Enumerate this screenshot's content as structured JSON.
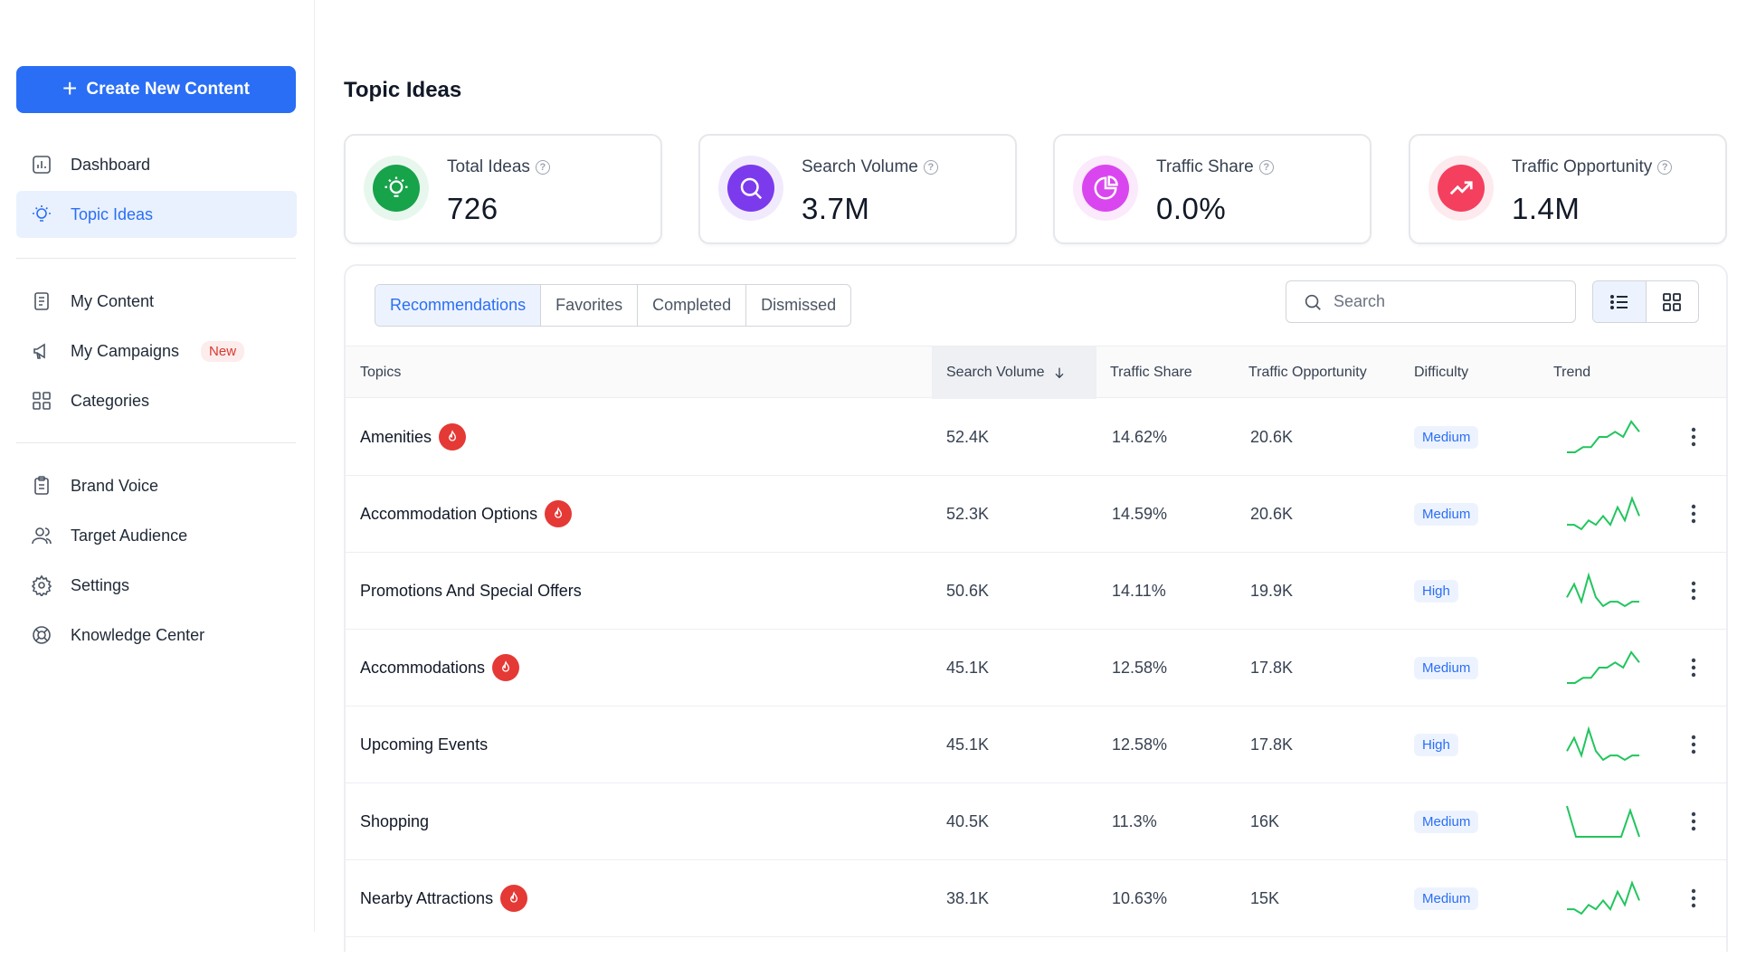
{
  "sidebar": {
    "create_label": "Create New Content",
    "group1": [
      {
        "label": "Dashboard",
        "icon": "chart-bar-icon"
      },
      {
        "label": "Topic Ideas",
        "icon": "lightbulb-icon",
        "active": true
      }
    ],
    "group2": [
      {
        "label": "My Content",
        "icon": "document-icon"
      },
      {
        "label": "My Campaigns",
        "icon": "megaphone-icon",
        "badge": "New"
      },
      {
        "label": "Categories",
        "icon": "grid-icon"
      }
    ],
    "group3": [
      {
        "label": "Brand Voice",
        "icon": "clipboard-icon"
      },
      {
        "label": "Target Audience",
        "icon": "users-icon"
      },
      {
        "label": "Settings",
        "icon": "gear-icon"
      },
      {
        "label": "Knowledge Center",
        "icon": "lifebuoy-icon"
      }
    ]
  },
  "page": {
    "title": "Topic Ideas"
  },
  "stats": [
    {
      "label": "Total Ideas",
      "value": "726",
      "icon": "lightbulb-icon",
      "color": "#16a34a"
    },
    {
      "label": "Search Volume",
      "value": "3.7M",
      "icon": "search-icon",
      "color": "#7c3aed"
    },
    {
      "label": "Traffic Share",
      "value": "0.0%",
      "icon": "pie-chart-icon",
      "color": "#d946ef"
    },
    {
      "label": "Traffic Opportunity",
      "value": "1.4M",
      "icon": "trending-up-icon",
      "color": "#f43f5e"
    }
  ],
  "tabs": [
    "Recommendations",
    "Favorites",
    "Completed",
    "Dismissed"
  ],
  "search": {
    "placeholder": "Search"
  },
  "table": {
    "headers": {
      "topics": "Topics",
      "search_volume": "Search Volume",
      "traffic_share": "Traffic Share",
      "traffic_opportunity": "Traffic Opportunity",
      "difficulty": "Difficulty",
      "trend": "Trend"
    },
    "rows": [
      {
        "topic": "Amenities",
        "hot": true,
        "search_volume": "52.4K",
        "traffic_share": "14.62%",
        "traffic_opportunity": "20.6K",
        "difficulty": "Medium",
        "trend": [
          2,
          2,
          3,
          3,
          5,
          5,
          6,
          5,
          8,
          6
        ]
      },
      {
        "topic": "Accommodation Options",
        "hot": true,
        "search_volume": "52.3K",
        "traffic_share": "14.59%",
        "traffic_opportunity": "20.6K",
        "difficulty": "Medium",
        "trend": [
          2,
          2,
          1,
          3,
          2,
          4,
          2,
          6,
          3,
          8,
          4
        ]
      },
      {
        "topic": "Promotions And Special Offers",
        "hot": false,
        "search_volume": "50.6K",
        "traffic_share": "14.11%",
        "traffic_opportunity": "19.9K",
        "difficulty": "High",
        "trend": [
          3,
          6,
          2,
          8,
          3,
          1,
          2,
          2,
          1,
          2,
          2
        ]
      },
      {
        "topic": "Accommodations",
        "hot": true,
        "search_volume": "45.1K",
        "traffic_share": "12.58%",
        "traffic_opportunity": "17.8K",
        "difficulty": "Medium",
        "trend": [
          2,
          2,
          3,
          3,
          5,
          5,
          6,
          5,
          8,
          6
        ]
      },
      {
        "topic": "Upcoming Events",
        "hot": false,
        "search_volume": "45.1K",
        "traffic_share": "12.58%",
        "traffic_opportunity": "17.8K",
        "difficulty": "High",
        "trend": [
          3,
          6,
          2,
          8,
          3,
          1,
          2,
          2,
          1,
          2,
          2
        ]
      },
      {
        "topic": "Shopping",
        "hot": false,
        "search_volume": "40.5K",
        "traffic_share": "11.3%",
        "traffic_opportunity": "16K",
        "difficulty": "Medium",
        "trend": [
          8,
          1,
          1,
          1,
          1,
          1,
          1,
          7,
          1
        ]
      },
      {
        "topic": "Nearby Attractions",
        "hot": true,
        "search_volume": "38.1K",
        "traffic_share": "10.63%",
        "traffic_opportunity": "15K",
        "difficulty": "Medium",
        "trend": [
          2,
          2,
          1,
          3,
          2,
          4,
          2,
          6,
          3,
          8,
          4
        ]
      }
    ]
  },
  "colors": {
    "accent": "#2a6ef5",
    "trend": "#22c55e",
    "hot": "#e53935"
  }
}
